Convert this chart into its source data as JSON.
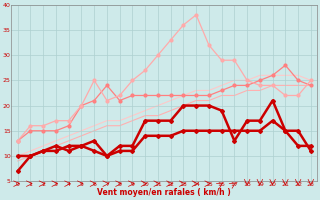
{
  "x": [
    0,
    1,
    2,
    3,
    4,
    5,
    6,
    7,
    8,
    9,
    10,
    11,
    12,
    13,
    14,
    15,
    16,
    17,
    18,
    19,
    20,
    21,
    22,
    23
  ],
  "line_bold1": [
    7,
    10,
    11,
    11,
    12,
    12,
    13,
    10,
    12,
    12,
    17,
    17,
    17,
    20,
    20,
    20,
    19,
    13,
    17,
    17,
    21,
    15,
    12,
    12
  ],
  "line_bold2": [
    10,
    10,
    11,
    12,
    11,
    12,
    11,
    10,
    11,
    11,
    14,
    14,
    14,
    15,
    15,
    15,
    15,
    15,
    15,
    15,
    17,
    15,
    15,
    11
  ],
  "line_med1": [
    13,
    15,
    15,
    15,
    16,
    20,
    21,
    24,
    21,
    22,
    22,
    22,
    22,
    22,
    22,
    22,
    23,
    24,
    24,
    25,
    26,
    28,
    25,
    24
  ],
  "line_thin1": [
    9,
    10,
    11,
    12,
    13,
    14,
    15,
    16,
    16,
    17,
    18,
    18,
    19,
    20,
    21,
    21,
    22,
    22,
    23,
    23,
    24,
    24,
    24,
    24
  ],
  "line_thin2": [
    10,
    11,
    12,
    13,
    14,
    15,
    16,
    17,
    17,
    18,
    19,
    20,
    21,
    22,
    23,
    23,
    24,
    25,
    25,
    26,
    26,
    26,
    26,
    25
  ],
  "line_peak": [
    13,
    16,
    16,
    17,
    17,
    20,
    25,
    21,
    22,
    25,
    27,
    30,
    33,
    36,
    38,
    32,
    29,
    29,
    25,
    24,
    24,
    22,
    22,
    25
  ],
  "bg_color": "#ceeaea",
  "grid_color": "#aed0d0",
  "color_bold": "#cc0000",
  "color_med": "#ff8080",
  "color_thin1": "#ffb0b0",
  "color_thin2": "#ffc8c8",
  "color_peak": "#ffaaaa",
  "xlabel": "Vent moyen/en rafales ( km/h )",
  "ylim": [
    5,
    40
  ],
  "xlim": [
    -0.5,
    23.5
  ],
  "yticks": [
    5,
    10,
    15,
    20,
    25,
    30,
    35,
    40
  ],
  "xticks": [
    0,
    1,
    2,
    3,
    4,
    5,
    6,
    7,
    8,
    9,
    10,
    11,
    12,
    13,
    14,
    15,
    16,
    17,
    18,
    19,
    20,
    21,
    22,
    23
  ]
}
